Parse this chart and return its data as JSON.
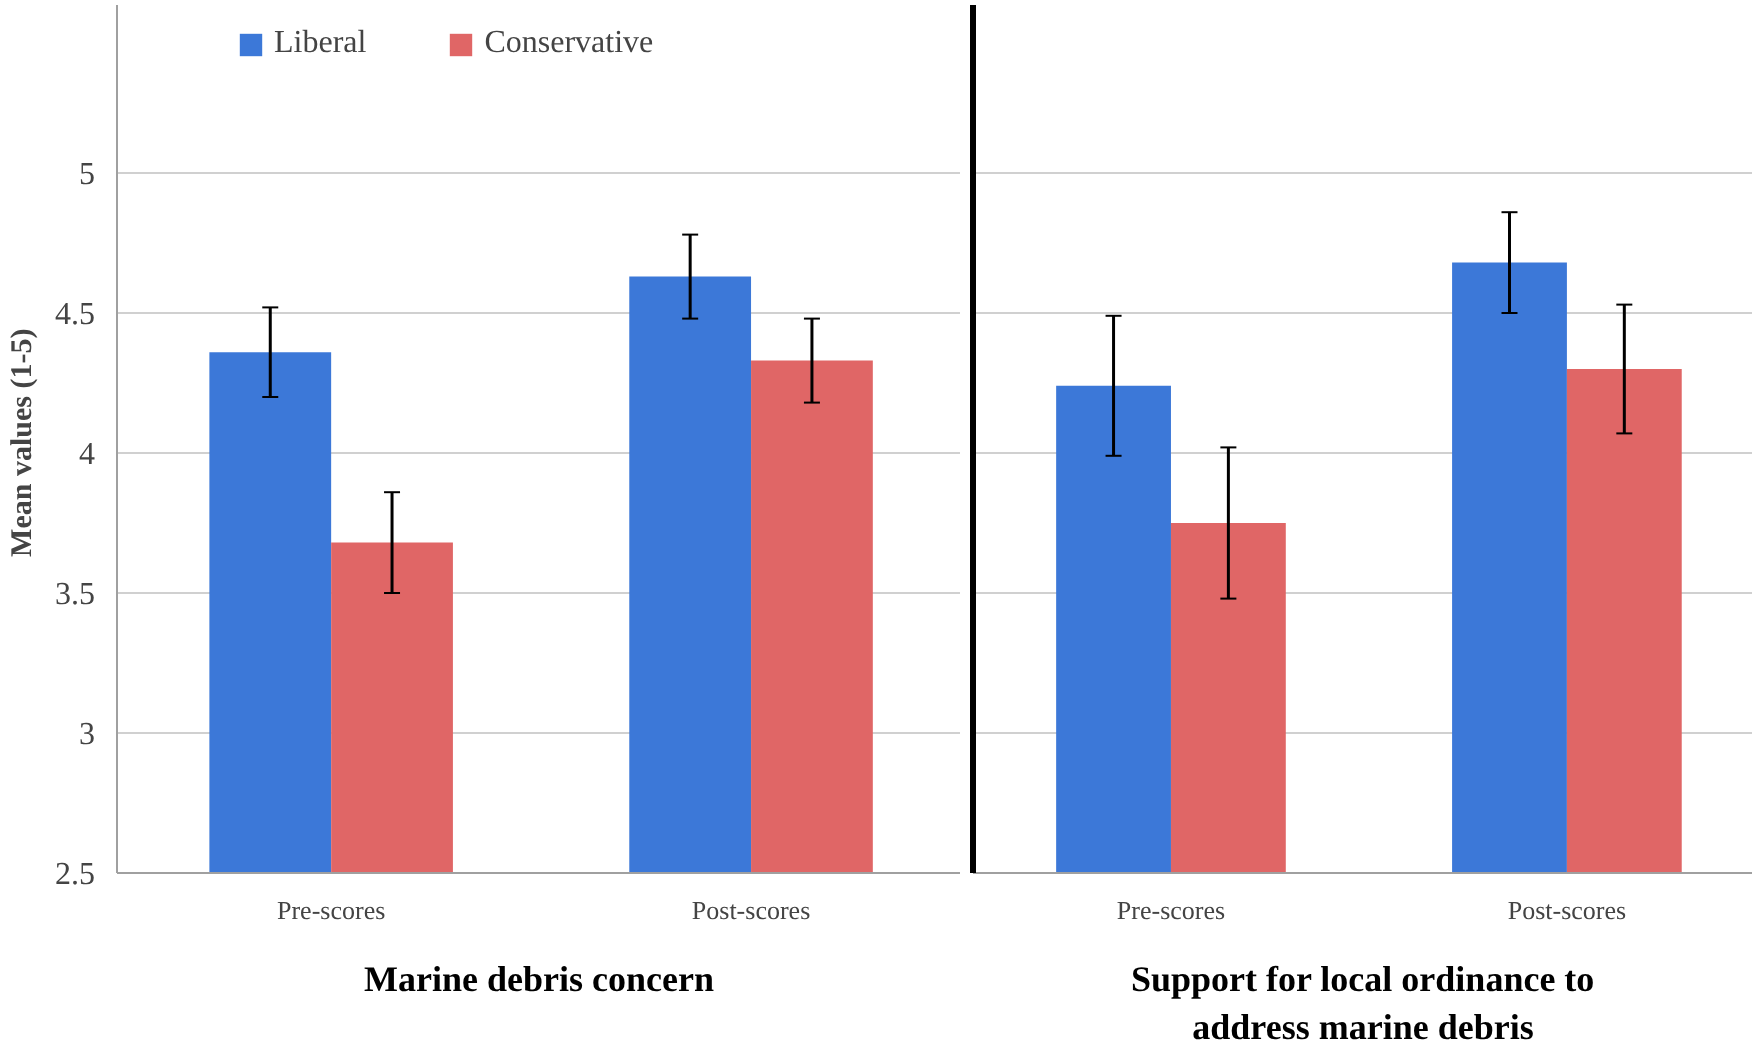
{
  "chart_data": [
    {
      "type": "bar",
      "ylabel": "Mean values  (1-5)",
      "xlabel": "Marine debris concern",
      "categories": [
        "Pre-scores",
        "Post-scores"
      ],
      "series": [
        {
          "name": "Liberal",
          "color": "#3c78d8",
          "values": [
            4.36,
            4.63
          ],
          "errors": [
            0.16,
            0.15
          ]
        },
        {
          "name": "Conservative",
          "color": "#e06666",
          "values": [
            3.68,
            4.33
          ],
          "errors": [
            0.18,
            0.15
          ]
        }
      ],
      "ylim": [
        2.5,
        5.6
      ],
      "yticks": [
        2.5,
        3,
        3.5,
        4,
        4.5,
        5
      ],
      "grid": "y",
      "legend": "top left"
    },
    {
      "type": "bar",
      "xlabel": "Support for local ordinance to address marine debris",
      "categories": [
        "Pre-scores",
        "Post-scores"
      ],
      "series": [
        {
          "color": "#3c78d8",
          "values": [
            4.24,
            4.68
          ],
          "errors": [
            0.25,
            0.18
          ]
        },
        {
          "color": "#e06666",
          "values": [
            3.75,
            4.3
          ],
          "errors": [
            0.27,
            0.23
          ]
        }
      ],
      "ylim": [
        2.5,
        5.6
      ],
      "yticks": [
        2.5,
        3,
        3.5,
        4,
        4.5,
        5
      ],
      "grid": "y",
      "tick_labels": "x"
    }
  ]
}
